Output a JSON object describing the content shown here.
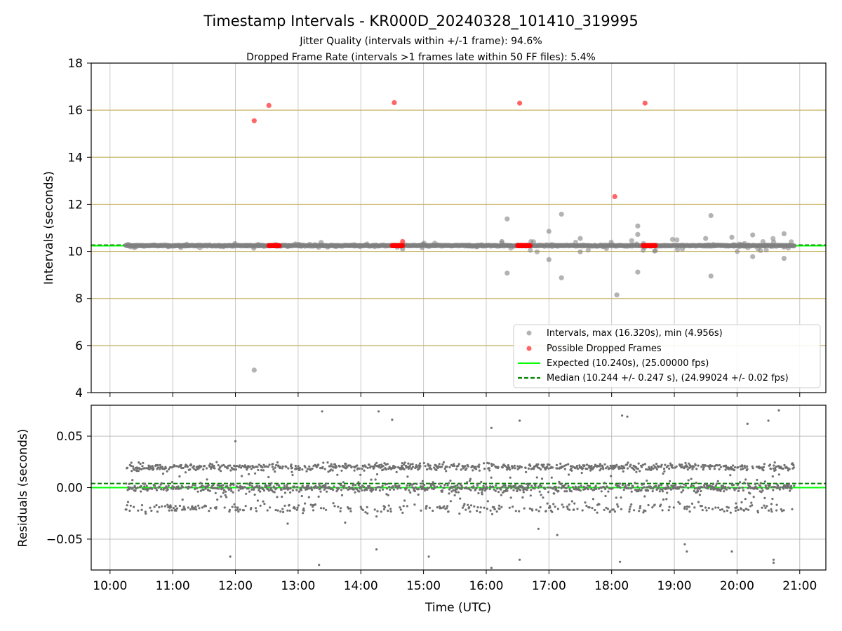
{
  "title": "Timestamp Intervals - KR000D_20240328_101410_319995",
  "subtitle_lines": [
    "Jitter Quality (intervals within +/-1 frame): 94.6%",
    "Dropped Frame Rate (intervals >1 frames late within 50 FF files): 5.4%"
  ],
  "colors": {
    "intervals": "#808080",
    "dropped": "#ff0000",
    "expected": "#00ff00",
    "median": "#008000",
    "gold_grid": "#c8b464",
    "grid": "#b0b0b0"
  },
  "chart_data": [
    {
      "type": "scatter",
      "panel": "intervals",
      "ylabel": "Intervals (seconds)",
      "ylim": [
        4,
        18
      ],
      "yticks": [
        4,
        6,
        8,
        10,
        12,
        14,
        16,
        18
      ],
      "xlim": [
        "09:42",
        "21:25"
      ],
      "grid": true,
      "legend_position": "lower-right",
      "legend": [
        "Intervals, max (16.320s), min (4.956s)",
        "Possible Dropped Frames",
        "Expected (10.240s), (25.00000 fps)",
        "Median (10.244 +/- 0.247 s), (24.99024 +/- 0.02 fps)"
      ],
      "expected_interval": 10.24,
      "median_interval": 10.244,
      "series": [
        {
          "name": "Intervals, max (16.320s), min (4.956s)",
          "points": [
            [
              "12:18",
              4.956
            ],
            [
              "16:20",
              11.38
            ],
            [
              "16:20",
              9.08
            ],
            [
              "17:12",
              11.58
            ],
            [
              "17:12",
              8.88
            ],
            [
              "17:00",
              10.85
            ],
            [
              "17:00",
              9.65
            ],
            [
              "17:30",
              10.55
            ],
            [
              "17:30",
              9.98
            ],
            [
              "18:05",
              8.15
            ],
            [
              "18:25",
              11.08
            ],
            [
              "18:25",
              9.12
            ],
            [
              "18:25",
              10.72
            ],
            [
              "19:35",
              11.52
            ],
            [
              "19:35",
              8.95
            ],
            [
              "20:15",
              10.7
            ],
            [
              "20:15",
              9.78
            ],
            [
              "20:45",
              10.75
            ],
            [
              "20:45",
              9.7
            ],
            [
              "13:22",
              10.38
            ],
            [
              "14:40",
              10.1
            ],
            [
              "16:15",
              10.42
            ],
            [
              "19:30",
              10.55
            ],
            [
              "19:55",
              10.6
            ]
          ]
        },
        {
          "name": "Possible Dropped Frames",
          "points": [
            [
              "12:18",
              15.55
            ],
            [
              "12:32",
              16.2
            ],
            [
              "14:32",
              16.32
            ],
            [
              "16:32",
              16.3
            ],
            [
              "18:03",
              12.33
            ],
            [
              "18:32",
              16.3
            ],
            [
              "14:40",
              10.42
            ]
          ]
        }
      ]
    },
    {
      "type": "scatter",
      "panel": "residuals",
      "xlabel": "Time (UTC)",
      "ylabel": "Residuals (seconds)",
      "ylim": [
        -0.08,
        0.08
      ],
      "yticks": [
        0.05,
        0.0,
        -0.05
      ],
      "ytick_labels": [
        "0.05",
        "0.00",
        "−0.05"
      ],
      "xticks": [
        "10:00",
        "11:00",
        "12:00",
        "13:00",
        "14:00",
        "15:00",
        "16:00",
        "17:00",
        "18:00",
        "19:00",
        "20:00",
        "21:00"
      ],
      "median_residual": 0.004,
      "expected_residual": 0.0,
      "data_range": [
        "10:15",
        "20:55"
      ],
      "outliers": [
        [
          "13:23",
          0.074
        ],
        [
          "14:17",
          0.074
        ],
        [
          "14:30",
          0.066
        ],
        [
          "16:32",
          0.065
        ],
        [
          "16:05",
          0.058
        ],
        [
          "18:10",
          0.07
        ],
        [
          "18:15",
          0.069
        ],
        [
          "20:40",
          0.075
        ],
        [
          "20:10",
          0.062
        ],
        [
          "20:30",
          0.065
        ],
        [
          "11:55",
          -0.067
        ],
        [
          "12:00",
          0.045
        ],
        [
          "13:20",
          -0.075
        ],
        [
          "14:15",
          -0.06
        ],
        [
          "15:05",
          -0.067
        ],
        [
          "16:05",
          -0.078
        ],
        [
          "16:32",
          -0.07
        ],
        [
          "17:08",
          -0.046
        ],
        [
          "18:08",
          -0.072
        ],
        [
          "19:10",
          -0.055
        ],
        [
          "19:12",
          -0.062
        ],
        [
          "19:55",
          -0.062
        ],
        [
          "20:35",
          -0.07
        ],
        [
          "20:35",
          -0.073
        ],
        [
          "16:50",
          -0.04
        ],
        [
          "14:15",
          -0.028
        ],
        [
          "13:45",
          -0.034
        ],
        [
          "12:50",
          -0.035
        ]
      ]
    }
  ]
}
